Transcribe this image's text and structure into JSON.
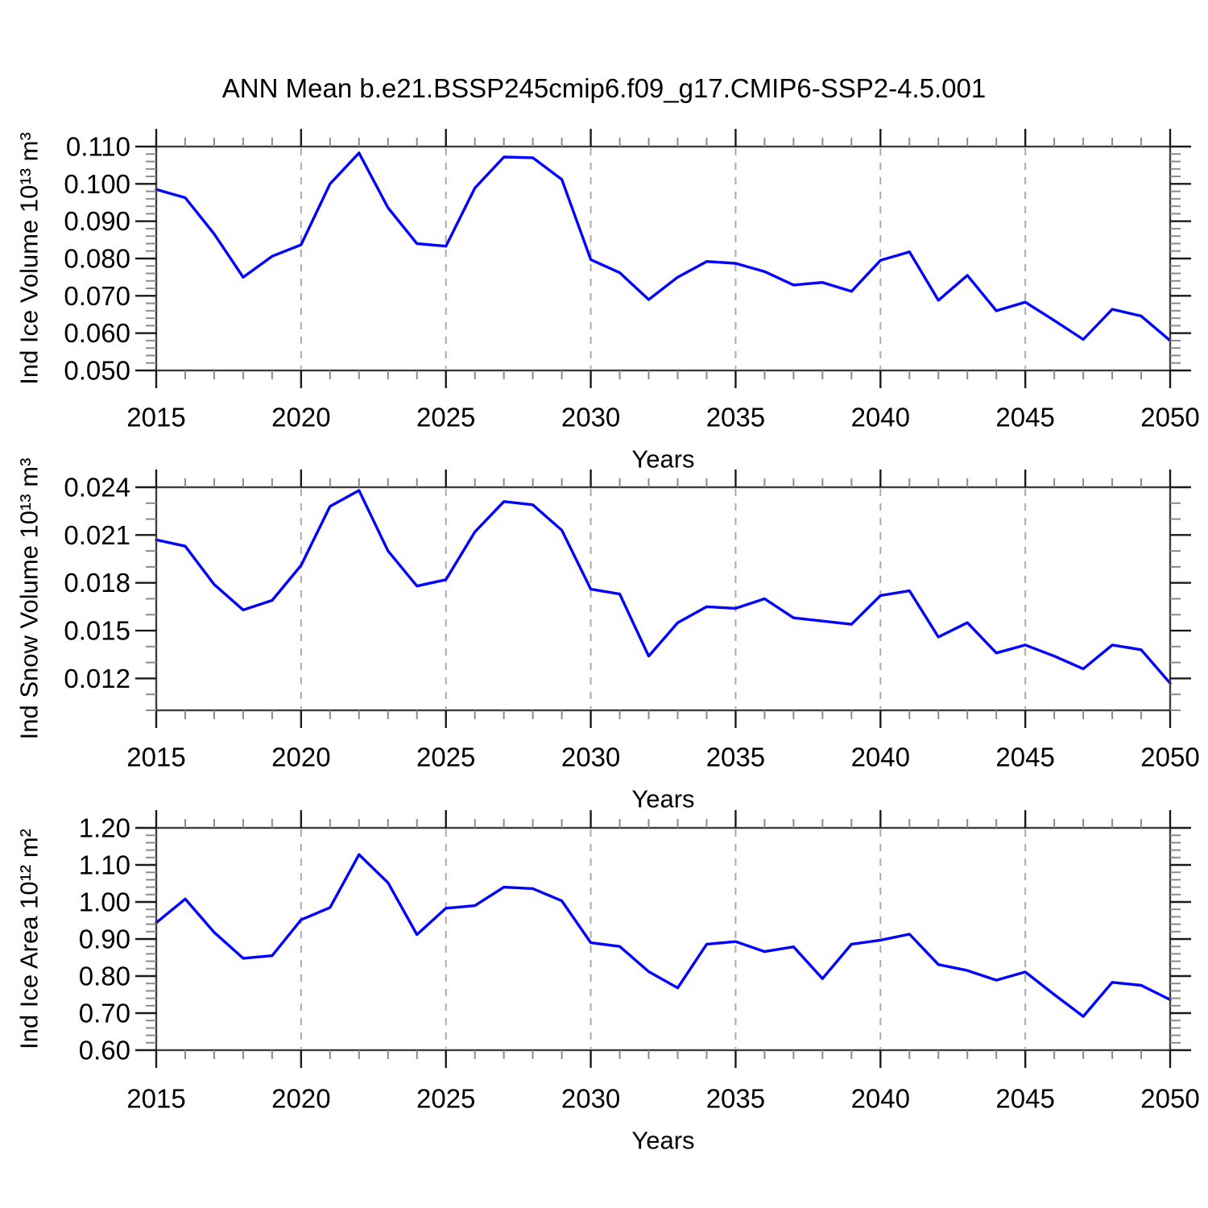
{
  "title": "ANN Mean b.e21.BSSP245cmip6.f09_g17.CMIP6-SSP2-4.5.001",
  "style": {
    "line_color": "#0000ff",
    "grid_color": "#ababab",
    "frame_color": "#3d3d3d",
    "major_tick_color": "#1a1a1a",
    "minor_tick_color": "#8a8a8a",
    "text_color": "#000000",
    "background": "#ffffff"
  },
  "chart_data": [
    {
      "type": "line",
      "id": "ind-ice-volume",
      "ylabel": "Ind Ice Volume 10¹³ m³",
      "xlabel": "Years",
      "x": [
        2015,
        2016,
        2017,
        2018,
        2019,
        2020,
        2021,
        2022,
        2023,
        2024,
        2025,
        2026,
        2027,
        2028,
        2029,
        2030,
        2031,
        2032,
        2033,
        2034,
        2035,
        2036,
        2037,
        2038,
        2039,
        2040,
        2041,
        2042,
        2043,
        2044,
        2045,
        2046,
        2047,
        2048,
        2049,
        2050
      ],
      "values": [
        0.0985,
        0.0963,
        0.0866,
        0.075,
        0.0806,
        0.0837,
        0.1,
        0.1083,
        0.0936,
        0.084,
        0.0833,
        0.0989,
        0.1072,
        0.107,
        0.1012,
        0.0797,
        0.0762,
        0.069,
        0.075,
        0.0792,
        0.0787,
        0.0765,
        0.0729,
        0.0736,
        0.0712,
        0.0795,
        0.0818,
        0.0688,
        0.0755,
        0.066,
        0.0683,
        0.0634,
        0.0583,
        0.0664,
        0.0646,
        0.058
      ],
      "ylim": [
        0.05,
        0.11
      ],
      "ytick_values": [
        0.11,
        0.1,
        0.09,
        0.08,
        0.07,
        0.06,
        0.05
      ],
      "ytick_labels": [
        "0.110",
        "0.100",
        "0.090",
        "0.080",
        "0.070",
        "0.060",
        "0.050"
      ],
      "y_minor_step": 0.002,
      "xlim": [
        2015,
        2050
      ],
      "xtick_values": [
        2015,
        2020,
        2025,
        2030,
        2035,
        2040,
        2045,
        2050
      ],
      "xtick_labels": [
        "2015",
        "2020",
        "2025",
        "2030",
        "2035",
        "2040",
        "2045",
        "2050"
      ],
      "grid_x": [
        2020,
        2025,
        2030,
        2035,
        2040,
        2045
      ],
      "grid": "vertical-dashed",
      "legend": "none"
    },
    {
      "type": "line",
      "id": "ind-snow-volume",
      "ylabel": "Ind Snow Volume 10¹³ m³",
      "xlabel": "Years",
      "x": [
        2015,
        2016,
        2017,
        2018,
        2019,
        2020,
        2021,
        2022,
        2023,
        2024,
        2025,
        2026,
        2027,
        2028,
        2029,
        2030,
        2031,
        2032,
        2033,
        2034,
        2035,
        2036,
        2037,
        2038,
        2039,
        2040,
        2041,
        2042,
        2043,
        2044,
        2045,
        2046,
        2047,
        2048,
        2049,
        2050
      ],
      "values": [
        0.0207,
        0.0203,
        0.0179,
        0.0163,
        0.0169,
        0.0191,
        0.0228,
        0.0238,
        0.02,
        0.0178,
        0.0182,
        0.0212,
        0.0231,
        0.0229,
        0.0213,
        0.0176,
        0.0173,
        0.0134,
        0.0155,
        0.0165,
        0.0164,
        0.017,
        0.0158,
        0.0156,
        0.0154,
        0.0172,
        0.0175,
        0.0146,
        0.0155,
        0.0136,
        0.0141,
        0.0134,
        0.0126,
        0.0141,
        0.0138,
        0.0117
      ],
      "ylim": [
        0.01,
        0.024
      ],
      "ytick_values": [
        0.024,
        0.021,
        0.018,
        0.015,
        0.012
      ],
      "ytick_labels": [
        "0.024",
        "0.021",
        "0.018",
        "0.015",
        "0.012"
      ],
      "y_minor_step": 0.001,
      "xlim": [
        2015,
        2050
      ],
      "xtick_values": [
        2015,
        2020,
        2025,
        2030,
        2035,
        2040,
        2045,
        2050
      ],
      "xtick_labels": [
        "2015",
        "2020",
        "2025",
        "2030",
        "2035",
        "2040",
        "2045",
        "2050"
      ],
      "grid_x": [
        2020,
        2025,
        2030,
        2035,
        2040,
        2045
      ],
      "grid": "vertical-dashed",
      "legend": "none"
    },
    {
      "type": "line",
      "id": "ind-ice-area",
      "ylabel": "Ind Ice Area 10¹² m²",
      "xlabel": "Years",
      "x": [
        2015,
        2016,
        2017,
        2018,
        2019,
        2020,
        2021,
        2022,
        2023,
        2024,
        2025,
        2026,
        2027,
        2028,
        2029,
        2030,
        2031,
        2032,
        2033,
        2034,
        2035,
        2036,
        2037,
        2038,
        2039,
        2040,
        2041,
        2042,
        2043,
        2044,
        2045,
        2046,
        2047,
        2048,
        2049,
        2050
      ],
      "values": [
        0.944,
        1.008,
        0.918,
        0.848,
        0.855,
        0.952,
        0.985,
        1.128,
        1.052,
        0.912,
        0.983,
        0.99,
        1.04,
        1.036,
        1.003,
        0.89,
        0.88,
        0.812,
        0.768,
        0.886,
        0.893,
        0.866,
        0.879,
        0.793,
        0.886,
        0.897,
        0.913,
        0.831,
        0.815,
        0.789,
        0.811,
        0.75,
        0.691,
        0.783,
        0.775,
        0.736
      ],
      "ylim": [
        0.6,
        1.2
      ],
      "ytick_values": [
        1.2,
        1.1,
        1.0,
        0.9,
        0.8,
        0.7,
        0.6
      ],
      "ytick_labels": [
        "1.20",
        "1.10",
        "1.00",
        "0.90",
        "0.80",
        "0.70",
        "0.60"
      ],
      "y_minor_step": 0.02,
      "xlim": [
        2015,
        2050
      ],
      "xtick_values": [
        2015,
        2020,
        2025,
        2030,
        2035,
        2040,
        2045,
        2050
      ],
      "xtick_labels": [
        "2015",
        "2020",
        "2025",
        "2030",
        "2035",
        "2040",
        "2045",
        "2050"
      ],
      "grid_x": [
        2020,
        2025,
        2030,
        2035,
        2040,
        2045
      ],
      "grid": "vertical-dashed",
      "legend": "none"
    }
  ]
}
